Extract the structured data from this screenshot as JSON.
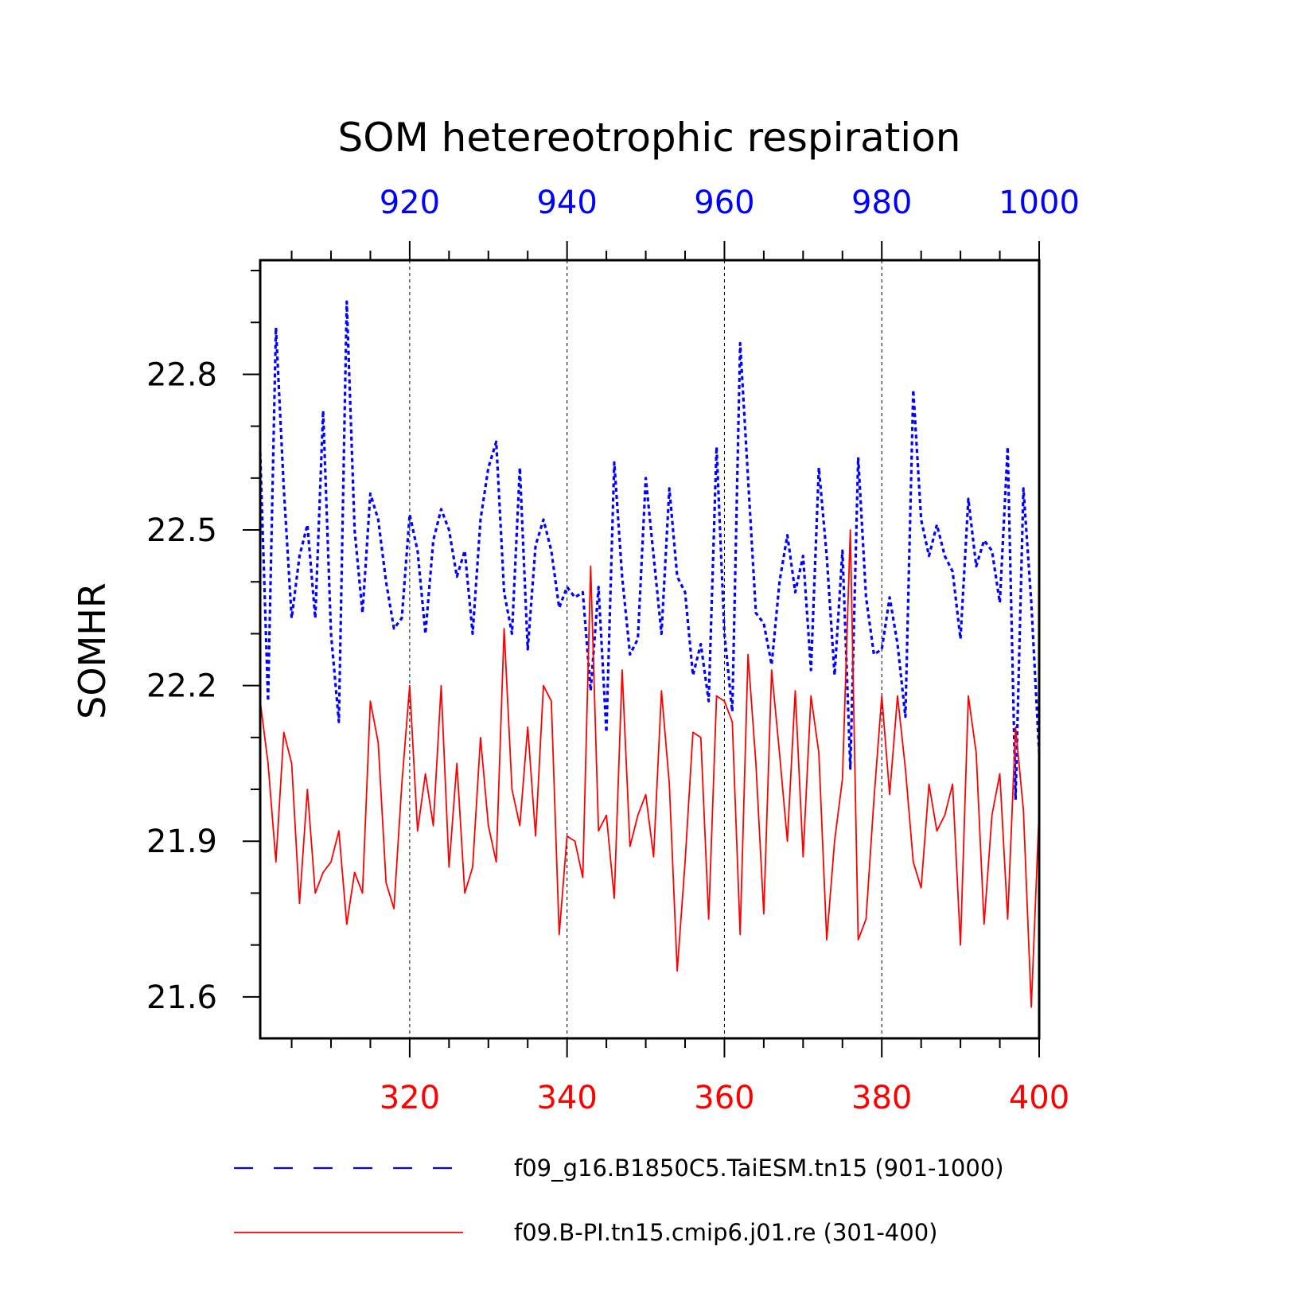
{
  "chart_data": {
    "type": "line",
    "title": "SOM hetereotrophic respiration",
    "ylabel": "SOMHR",
    "ylim": [
      21.52,
      23.02
    ],
    "yticks": [
      21.6,
      21.9,
      22.2,
      22.5,
      22.8
    ],
    "ytick_labels": [
      "21.6",
      "21.9",
      "22.2",
      "22.5",
      "22.8"
    ],
    "grid": "vertical dashed lines at major x ticks",
    "legend_position": "bottom",
    "colors": {
      "series_top": "#0000ff",
      "series_bottom": "#ff0000",
      "axes": "#000000"
    },
    "series": [
      {
        "name": "f09_g16.B1850C5.TaiESM.tn15 (901-1000)",
        "axis": "top",
        "style": "dashed",
        "x_range": [
          901,
          1000
        ],
        "xticks": [
          920,
          940,
          960,
          980,
          1000
        ],
        "xtick_labels": [
          "920",
          "940",
          "960",
          "980",
          "1000"
        ],
        "values": [
          22.65,
          22.17,
          22.89,
          22.58,
          22.33,
          22.45,
          22.51,
          22.33,
          22.73,
          22.3,
          22.13,
          22.94,
          22.5,
          22.34,
          22.57,
          22.52,
          22.4,
          22.31,
          22.33,
          22.53,
          22.46,
          22.3,
          22.48,
          22.54,
          22.5,
          22.41,
          22.46,
          22.3,
          22.52,
          22.62,
          22.67,
          22.38,
          22.3,
          22.62,
          22.27,
          22.47,
          22.52,
          22.46,
          22.35,
          22.39,
          22.37,
          22.38,
          22.19,
          22.39,
          22.11,
          22.63,
          22.41,
          22.26,
          22.29,
          22.6,
          22.45,
          22.3,
          22.58,
          22.41,
          22.38,
          22.22,
          22.28,
          22.17,
          22.66,
          22.3,
          22.15,
          22.86,
          22.6,
          22.34,
          22.32,
          22.24,
          22.4,
          22.49,
          22.38,
          22.45,
          22.23,
          22.62,
          22.45,
          22.22,
          22.46,
          22.04,
          22.64,
          22.37,
          22.26,
          22.27,
          22.37,
          22.28,
          22.14,
          22.77,
          22.52,
          22.45,
          22.51,
          22.45,
          22.42,
          22.29,
          22.56,
          22.43,
          22.48,
          22.46,
          22.36,
          22.66,
          21.98,
          22.58,
          22.36,
          22.07
        ]
      },
      {
        "name": "f09.B-PI.tn15.cmip6.j01.re (301-400)",
        "axis": "bottom",
        "style": "solid",
        "x_range": [
          301,
          400
        ],
        "xticks": [
          320,
          340,
          360,
          380,
          400
        ],
        "xtick_labels": [
          "320",
          "340",
          "360",
          "380",
          "400"
        ],
        "values": [
          22.17,
          22.05,
          21.86,
          22.11,
          22.05,
          21.78,
          22.0,
          21.8,
          21.84,
          21.86,
          21.92,
          21.74,
          21.84,
          21.8,
          22.17,
          22.09,
          21.82,
          21.77,
          22.01,
          22.2,
          21.92,
          22.03,
          21.93,
          22.2,
          21.85,
          22.05,
          21.8,
          21.85,
          22.1,
          21.93,
          21.86,
          22.31,
          22.0,
          21.93,
          22.12,
          21.91,
          22.2,
          22.17,
          21.72,
          21.91,
          21.9,
          21.83,
          22.43,
          21.92,
          21.95,
          21.79,
          22.23,
          21.89,
          21.95,
          21.99,
          21.87,
          22.19,
          22.01,
          21.65,
          21.86,
          22.11,
          22.1,
          21.75,
          22.18,
          22.17,
          22.13,
          21.72,
          22.26,
          22.05,
          21.76,
          22.23,
          22.07,
          21.9,
          22.19,
          21.87,
          22.18,
          22.07,
          21.71,
          21.9,
          22.02,
          22.5,
          21.71,
          21.75,
          21.98,
          22.18,
          21.99,
          22.18,
          22.04,
          21.86,
          21.81,
          22.01,
          21.92,
          21.95,
          22.01,
          21.7,
          22.18,
          22.07,
          21.74,
          21.95,
          22.03,
          21.75,
          22.12,
          21.96,
          21.58,
          21.96
        ]
      }
    ]
  }
}
